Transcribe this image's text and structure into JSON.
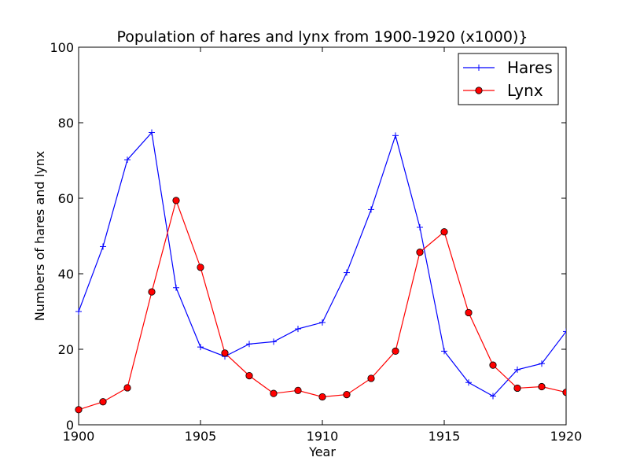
{
  "chart_data": {
    "type": "line",
    "title": "Population of hares and lynx from 1900-1920 (x1000)}",
    "xlabel": "Year",
    "ylabel": "Numbers of hares and lynx",
    "xlim": [
      1900,
      1920
    ],
    "ylim": [
      0,
      100
    ],
    "x_ticks": [
      1900,
      1905,
      1910,
      1915,
      1920
    ],
    "y_ticks": [
      0,
      20,
      40,
      60,
      80,
      100
    ],
    "grid": false,
    "legend_position": "top-right",
    "x": [
      1900,
      1901,
      1902,
      1903,
      1904,
      1905,
      1906,
      1907,
      1908,
      1909,
      1910,
      1911,
      1912,
      1913,
      1914,
      1915,
      1916,
      1917,
      1918,
      1919,
      1920
    ],
    "series": [
      {
        "name": "Hares",
        "color": "#0000ff",
        "marker": "plus",
        "values": [
          30,
          47.2,
          70.2,
          77.4,
          36.3,
          20.6,
          18.1,
          21.4,
          22,
          25.4,
          27.1,
          40.3,
          57,
          76.6,
          52.3,
          19.5,
          11.2,
          7.6,
          14.6,
          16.2,
          24.7
        ]
      },
      {
        "name": "Lynx",
        "color": "#ff0000",
        "marker": "circle",
        "values": [
          4,
          6.1,
          9.8,
          35.2,
          59.4,
          41.7,
          19,
          13,
          8.3,
          9.1,
          7.4,
          8,
          12.3,
          19.5,
          45.7,
          51.1,
          29.7,
          15.8,
          9.7,
          10.1,
          8.6
        ]
      }
    ]
  }
}
